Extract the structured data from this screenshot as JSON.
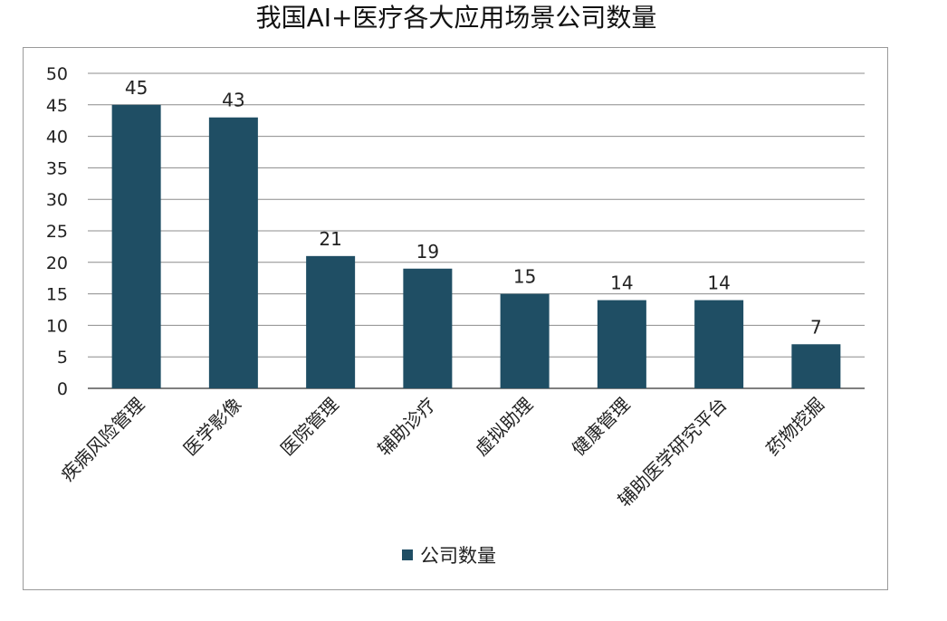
{
  "chart_data": {
    "type": "bar",
    "title": "我国AI+医疗各大应用场景公司数量",
    "categories": [
      "疾病风险管理",
      "医学影像",
      "医院管理",
      "辅助诊疗",
      "虚拟助理",
      "健康管理",
      "辅助医学研究平台",
      "药物挖掘"
    ],
    "series": [
      {
        "name": "公司数量",
        "values": [
          45,
          43,
          21,
          19,
          15,
          14,
          14,
          7
        ],
        "color": "#1f4e64"
      }
    ],
    "ylim": [
      0,
      50
    ],
    "yticks": [
      "0",
      "5",
      "10",
      "15",
      "20",
      "25",
      "30",
      "35",
      "40",
      "45",
      "50"
    ],
    "data_labels": [
      "45",
      "43",
      "21",
      "19",
      "15",
      "14",
      "14",
      "7"
    ],
    "grid": true,
    "legend_position": "bottom"
  },
  "colors": {
    "bar": "#1f4e64",
    "grid": "#8c8c8c",
    "frame": "#9a9a9a"
  }
}
